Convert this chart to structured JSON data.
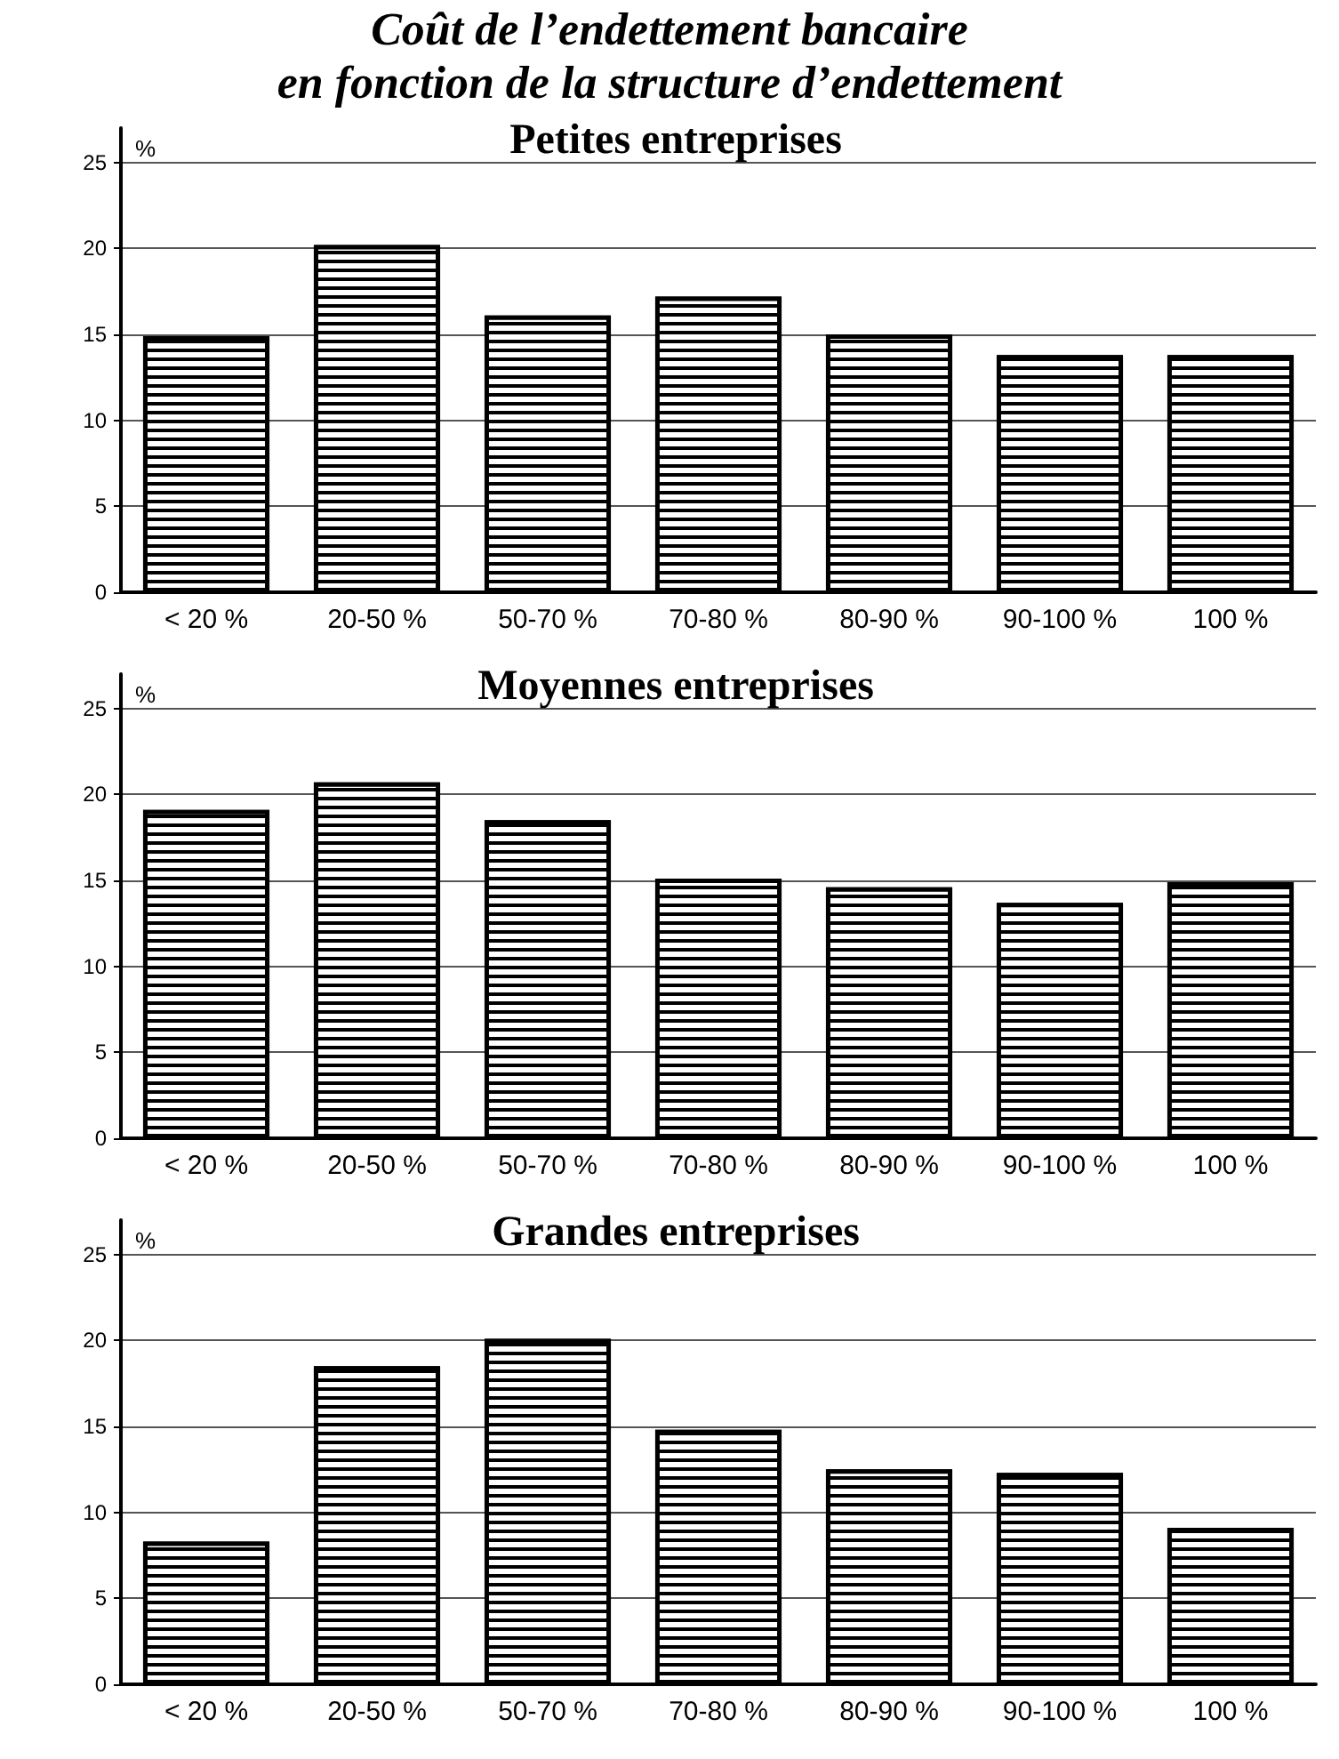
{
  "chart_data": [
    {
      "type": "bar",
      "title": "Coût de l’endettement bancaire\nen fonction de la structure d’endettement",
      "subtitle": "Petites entreprises",
      "ylabel": "%",
      "categories": [
        "< 20 %",
        "20-50 %",
        "50-70 %",
        "70-80 %",
        "80-90 %",
        "90-100 %",
        "100 %"
      ],
      "values": [
        14.9,
        20.2,
        16.1,
        17.2,
        15.0,
        13.8,
        13.8
      ],
      "color": "#000000",
      "ylim": [
        0,
        27
      ],
      "yticks": [
        0,
        5,
        10,
        15,
        20,
        25
      ],
      "grid": "y"
    },
    {
      "type": "bar",
      "title": "Moyennes entreprises",
      "ylabel": "%",
      "categories": [
        "< 20 %",
        "20-50 %",
        "50-70 %",
        "70-80 %",
        "80-90 %",
        "90-100 %",
        "100 %"
      ],
      "values": [
        19.1,
        20.7,
        18.5,
        15.1,
        14.6,
        13.7,
        14.9
      ],
      "color": "#000000",
      "ylim": [
        0,
        27
      ],
      "yticks": [
        0,
        5,
        10,
        15,
        20,
        25
      ],
      "grid": "y"
    },
    {
      "type": "bar",
      "title": "Grandes entreprises",
      "ylabel": "%",
      "categories": [
        "< 20 %",
        "20-50 %",
        "50-70 %",
        "70-80 %",
        "80-90 %",
        "90-100 %",
        "100 %"
      ],
      "values": [
        8.3,
        18.5,
        20.1,
        14.8,
        12.5,
        12.3,
        9.1
      ],
      "color": "#000000",
      "ylim": [
        0,
        27
      ],
      "yticks": [
        0,
        5,
        10,
        15,
        20,
        25
      ],
      "grid": "y"
    }
  ]
}
